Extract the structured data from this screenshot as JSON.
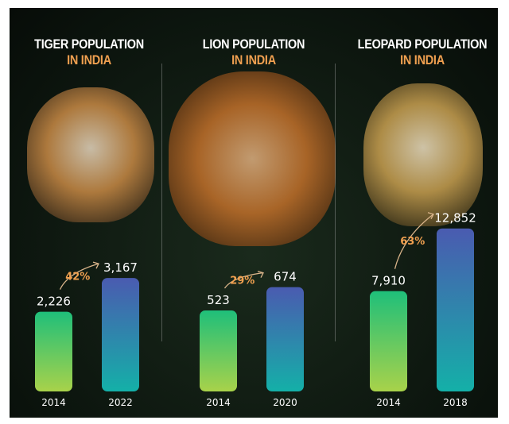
{
  "chart_data": [
    {
      "type": "bar",
      "title": "TIGER POPULATION",
      "subtitle": "IN INDIA",
      "categories": [
        "2014",
        "2022"
      ],
      "values": [
        2226,
        3167
      ],
      "labels": [
        "2,226",
        "3,167"
      ],
      "growth": "42%",
      "ylim": [
        0,
        5100
      ]
    },
    {
      "type": "bar",
      "title": "LION POPULATION",
      "subtitle": "IN INDIA",
      "categories": [
        "2014",
        "2020"
      ],
      "values": [
        523,
        674
      ],
      "labels": [
        "523",
        "674"
      ],
      "growth": "29%",
      "ylim": [
        0,
        1180
      ]
    },
    {
      "type": "bar",
      "title": "LEOPARD POPULATION",
      "subtitle": "IN INDIA",
      "categories": [
        "2014",
        "2018"
      ],
      "values": [
        7910,
        12852
      ],
      "labels": [
        "7,910",
        "12,852"
      ],
      "growth": "63%",
      "ylim": [
        0,
        14400
      ]
    }
  ],
  "colors": {
    "bar_old_top": "#1fbf7a",
    "bar_old_bottom": "#a8d24a",
    "bar_new_top": "#4a5bb0",
    "bar_new_bottom": "#14b0a8",
    "accent": "#f0a050",
    "animal_tiger": "#c98a45",
    "animal_lion": "#c2702a",
    "animal_leopard": "#c9a050"
  }
}
